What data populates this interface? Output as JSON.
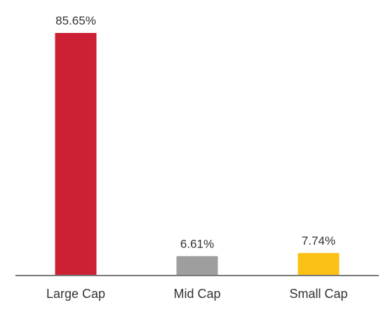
{
  "chart_data": {
    "type": "bar",
    "categories": [
      "Large Cap",
      "Mid Cap",
      "Small Cap"
    ],
    "values": [
      85.65,
      6.61,
      7.74
    ],
    "value_labels": [
      "85.65%",
      "6.61%",
      "7.74%"
    ],
    "colors": [
      "#cc2035",
      "#9e9e9e",
      "#fbc116"
    ],
    "axis_color": "#7a7a7a",
    "title": "",
    "xlabel": "",
    "ylabel": "",
    "ylim": [
      0,
      100
    ],
    "grid": false,
    "legend": "none"
  }
}
